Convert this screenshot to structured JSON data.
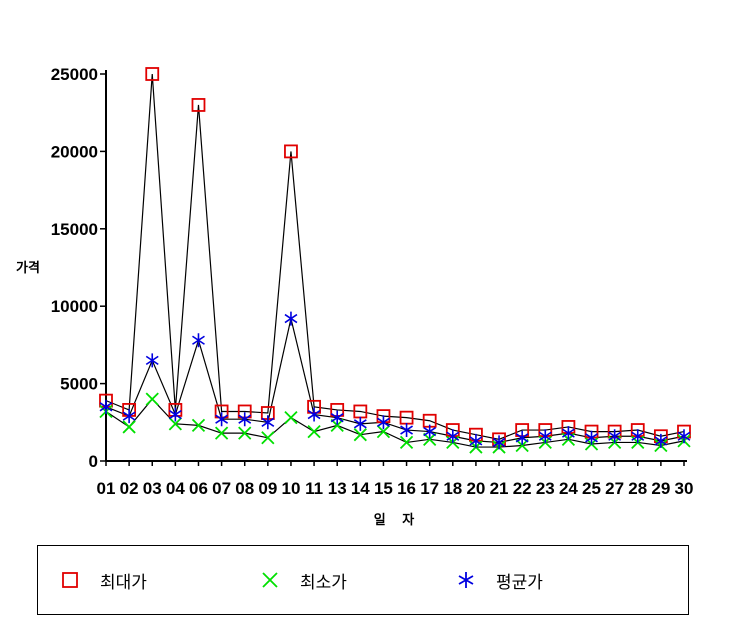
{
  "chart_data": {
    "type": "line",
    "title": "",
    "xlabel": "일 자",
    "ylabel": "가격",
    "categories": [
      "01",
      "02",
      "03",
      "04",
      "06",
      "07",
      "08",
      "09",
      "10",
      "11",
      "13",
      "14",
      "15",
      "16",
      "17",
      "18",
      "20",
      "21",
      "22",
      "23",
      "24",
      "25",
      "27",
      "28",
      "29",
      "30"
    ],
    "ylim": [
      0,
      25000
    ],
    "yticks": [
      0,
      5000,
      10000,
      15000,
      20000,
      25000
    ],
    "grid": false,
    "legend_position": "bottom",
    "series": [
      {
        "name": "최대가",
        "color": "#e00000",
        "marker": "square",
        "values": [
          3900,
          3300,
          25000,
          3300,
          23000,
          3200,
          3200,
          3100,
          20000,
          3500,
          3300,
          3200,
          2900,
          2800,
          2600,
          2000,
          1700,
          1400,
          2000,
          2000,
          2200,
          1900,
          1900,
          2000,
          1600,
          1900
        ]
      },
      {
        "name": "최소가",
        "color": "#00e000",
        "marker": "x",
        "values": [
          3200,
          2200,
          4000,
          2400,
          2300,
          1800,
          1800,
          1500,
          2800,
          1900,
          2300,
          1700,
          1900,
          1200,
          1400,
          1200,
          900,
          900,
          1000,
          1200,
          1400,
          1100,
          1200,
          1200,
          1000,
          1300
        ]
      },
      {
        "name": "평균가",
        "color": "#0000e0",
        "marker": "asterisk",
        "values": [
          3500,
          2900,
          6500,
          3000,
          7800,
          2700,
          2700,
          2500,
          9200,
          3000,
          2800,
          2400,
          2500,
          2000,
          1900,
          1600,
          1300,
          1200,
          1500,
          1600,
          1800,
          1500,
          1600,
          1600,
          1300,
          1600
        ]
      }
    ]
  }
}
